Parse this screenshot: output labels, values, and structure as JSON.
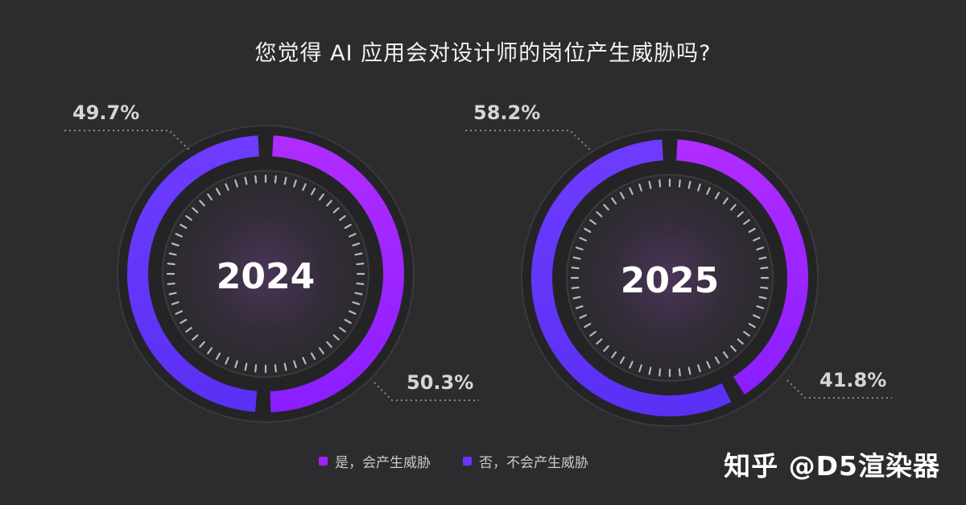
{
  "title": "您觉得 AI 应用会对设计师的岗位产生威胁吗?",
  "legend": {
    "yes_label": "是，会产生威胁",
    "no_label": "否，不会产生威胁",
    "yes_color": "#a021ff",
    "no_color": "#6b35ff"
  },
  "watermark": "知乎 @D5渲染器",
  "chart_data": [
    {
      "type": "pie",
      "center_label": "2024",
      "slices": [
        {
          "legend": "是，会产生威胁",
          "value": 50.3,
          "label": "50.3%",
          "color": "#a021ff"
        },
        {
          "legend": "否，不会产生威胁",
          "value": 49.7,
          "label": "49.7%",
          "color": "#6b35ff"
        }
      ]
    },
    {
      "type": "pie",
      "center_label": "2025",
      "slices": [
        {
          "legend": "是，会产生威胁",
          "value": 41.8,
          "label": "41.8%",
          "color": "#a021ff"
        },
        {
          "legend": "否，不会产生威胁",
          "value": 58.2,
          "label": "58.2%",
          "color": "#6b35ff"
        }
      ]
    }
  ]
}
